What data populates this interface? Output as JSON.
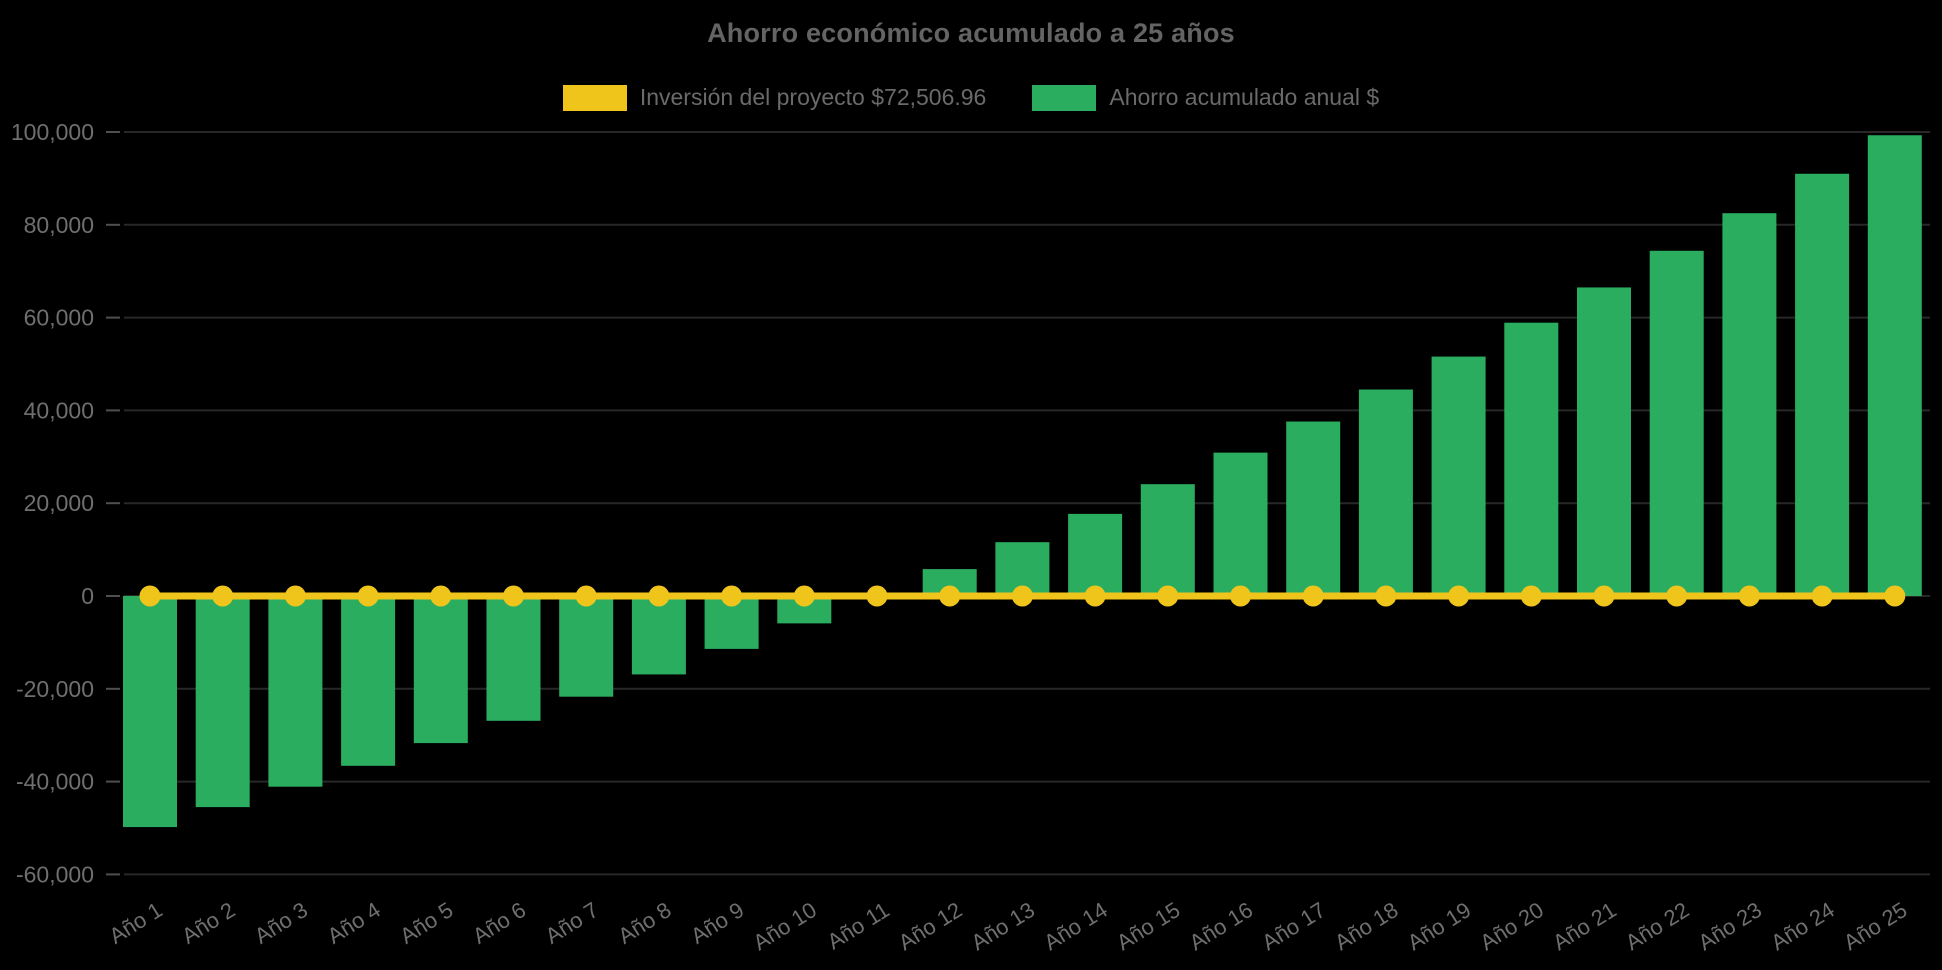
{
  "chart_data": {
    "type": "bar",
    "title": "Ahorro económico acumulado a 25 años",
    "legend_position": "top",
    "grid": "horizontal-subtle",
    "background": "#000000",
    "text_color": "#6f6f6f",
    "categories": [
      "Año 1",
      "Año 2",
      "Año 3",
      "Año 4",
      "Año 5",
      "Año 6",
      "Año 7",
      "Año 8",
      "Año 9",
      "Año 10",
      "Año 11",
      "Año 12",
      "Año 13",
      "Año 14",
      "Año 15",
      "Año 16",
      "Año 17",
      "Año 18",
      "Año 19",
      "Año 20",
      "Año 21",
      "Año 22",
      "Año 23",
      "Año 24",
      "Año 25"
    ],
    "series": [
      {
        "name": "Inversión del proyecto $72,506.96",
        "type": "line",
        "color": "#EFC51C",
        "values": [
          0,
          0,
          0,
          0,
          0,
          0,
          0,
          0,
          0,
          0,
          0,
          0,
          0,
          0,
          0,
          0,
          0,
          0,
          0,
          0,
          0,
          0,
          0,
          0,
          0
        ]
      },
      {
        "name": "Ahorro acumulado anual $",
        "type": "bar",
        "color": "#2BAD5F",
        "values": [
          -49800,
          -45500,
          -41100,
          -36600,
          -31700,
          -26900,
          -21700,
          -16900,
          -11400,
          -5900,
          0,
          5800,
          11600,
          17700,
          24100,
          30900,
          37600,
          44500,
          51600,
          58900,
          66500,
          74400,
          82500,
          91000,
          99300
        ]
      }
    ],
    "ylim": [
      -60000,
      100000
    ],
    "ytick_step": 20000,
    "ytick_labels": [
      "100,000",
      "80,000",
      "60,000",
      "40,000",
      "20,000",
      "0",
      "-20,000",
      "-40,000",
      "-60,000"
    ],
    "xlabel": "",
    "ylabel": ""
  }
}
